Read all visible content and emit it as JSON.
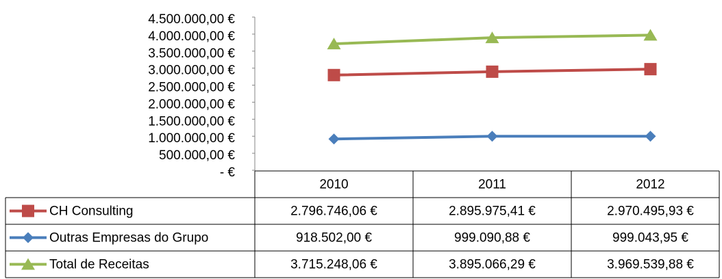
{
  "chart_data": {
    "type": "line",
    "categories": [
      "2010",
      "2011",
      "2012"
    ],
    "series": [
      {
        "name": "CH Consulting",
        "color": "#be4b48",
        "marker": "square",
        "values": [
          2796746.06,
          2895975.41,
          2970495.93
        ],
        "value_labels": [
          "2.796.746,06 €",
          "2.895.975,41 €",
          "2.970.495,93 €"
        ]
      },
      {
        "name": "Outras Empresas do Grupo",
        "color": "#4a7ebb",
        "marker": "diamond",
        "values": [
          918502.0,
          999090.88,
          999043.95
        ],
        "value_labels": [
          "918.502,00 €",
          "999.090,88 €",
          "999.043,95 €"
        ]
      },
      {
        "name": "Total de Receitas",
        "color": "#98b954",
        "marker": "triangle",
        "values": [
          3715248.06,
          3895066.29,
          3969539.88
        ],
        "value_labels": [
          "3.715.248,06 €",
          "3.895.066,29 €",
          "3.969.539,88 €"
        ]
      }
    ],
    "ylim": [
      0,
      4500000
    ],
    "yticks": [
      {
        "value": 0,
        "label": "-   €"
      },
      {
        "value": 500000,
        "label": "500.000,00 €"
      },
      {
        "value": 1000000,
        "label": "1.000.000,00 €"
      },
      {
        "value": 1500000,
        "label": "1.500.000,00 €"
      },
      {
        "value": 2000000,
        "label": "2.000.000,00 €"
      },
      {
        "value": 2500000,
        "label": "2.500.000,00 €"
      },
      {
        "value": 3000000,
        "label": "3.000.000,00 €"
      },
      {
        "value": 3500000,
        "label": "3.500.000,00 €"
      },
      {
        "value": 4000000,
        "label": "4.000.000,00 €"
      },
      {
        "value": 4500000,
        "label": "4.500.000,00 €"
      }
    ],
    "grid": false
  }
}
